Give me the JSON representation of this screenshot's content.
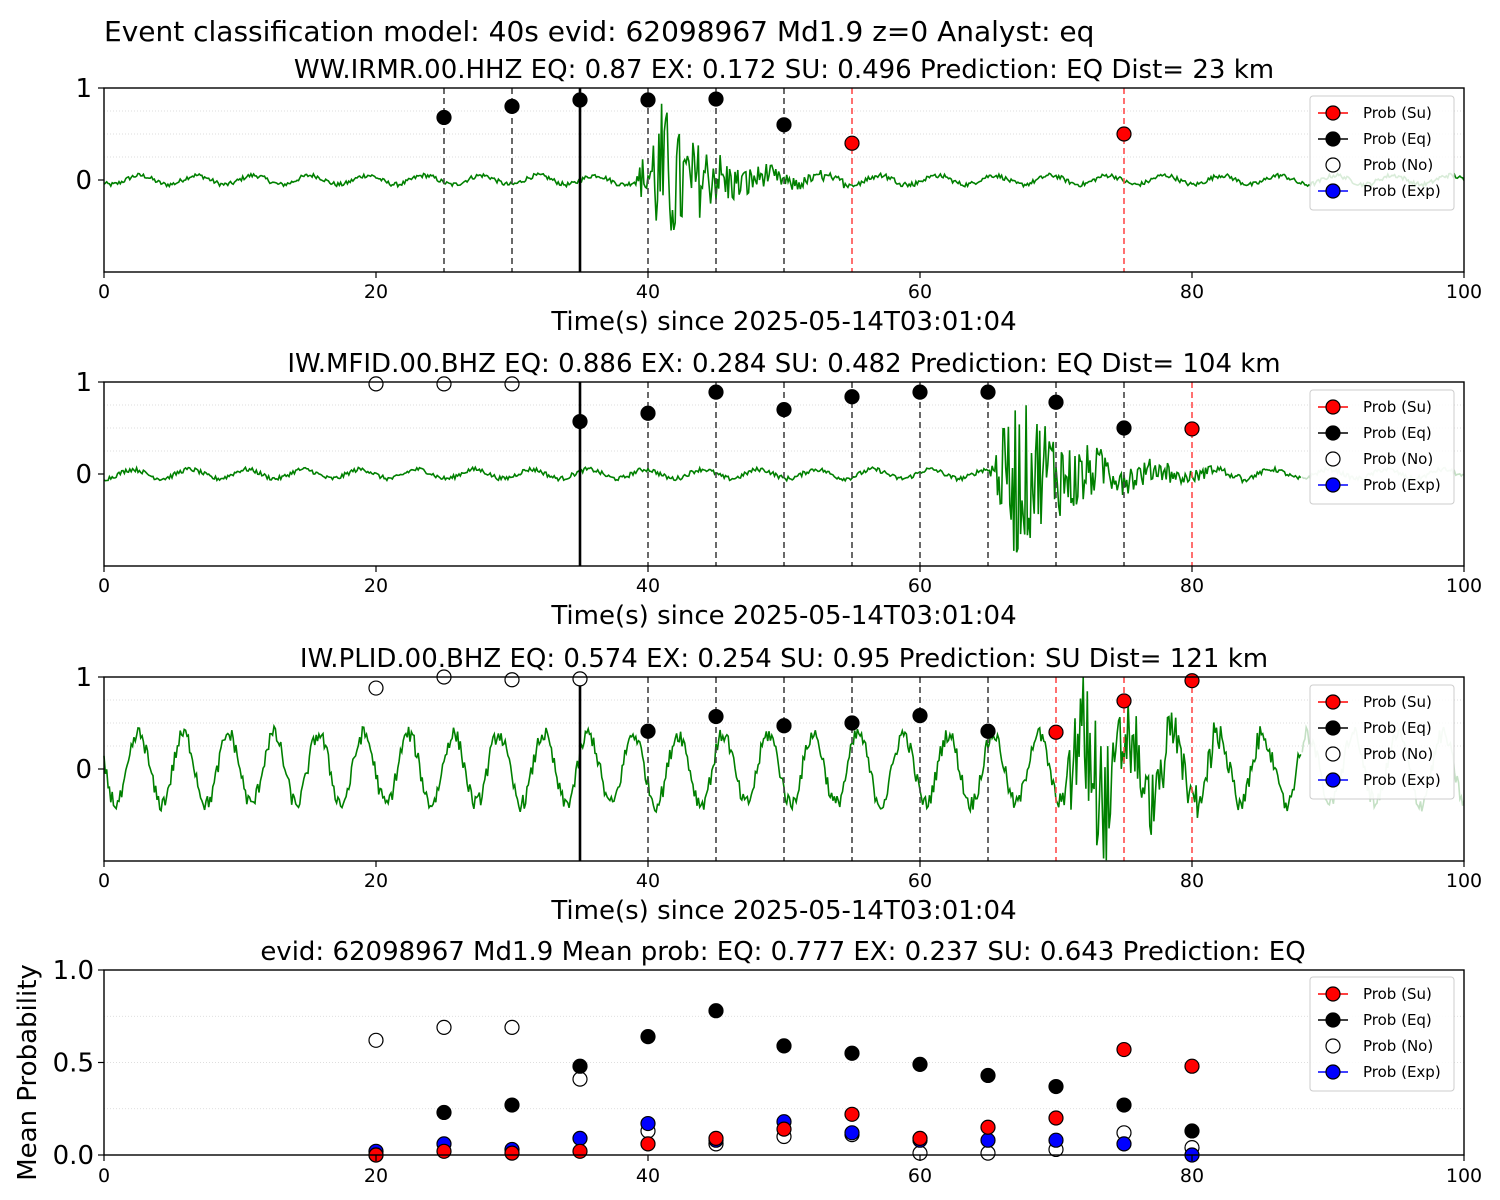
{
  "chart_data": {
    "type": "scatter",
    "suptitle": "Event classification model: 40s evid: 62098967 Md1.9 z=0 Analyst: eq",
    "colors": {
      "trace": "#008000",
      "su": "#ff0000",
      "eq": "#000000",
      "no": "#ffffff",
      "exp": "#0000ff",
      "marker_line": "#444444",
      "su_line": "#ff4c4c",
      "grid": "#d3d3d3"
    },
    "legend": {
      "placement": "top-right",
      "entries": [
        "Prob (Su)",
        "Prob (Eq)",
        "Prob (No)",
        "Prob (Exp)"
      ]
    },
    "panels": [
      {
        "title": "WW.IRMR.00.HHZ   EQ: 0.87  EX: 0.172  SU: 0.496   Prediction: EQ    Dist= 23 km",
        "xlabel": "Time(s) since 2025-05-14T03:01:04",
        "xlim": [
          0,
          100
        ],
        "ylim": [
          -1,
          1
        ],
        "xticks": [
          "0",
          "20",
          "40",
          "60",
          "80",
          "100"
        ],
        "yticks": [
          "1",
          "0"
        ],
        "signal_window": [
          39,
          50
        ],
        "faded_after": null,
        "bold_line": 35,
        "gray_lines": [
          25,
          30,
          40,
          45,
          50
        ],
        "red_lines": [
          55,
          75
        ],
        "eq": [
          [
            25,
            0.68
          ],
          [
            30,
            0.8
          ],
          [
            35,
            0.87
          ],
          [
            40,
            0.87
          ],
          [
            45,
            0.88
          ],
          [
            50,
            0.6
          ]
        ],
        "su": [
          [
            55,
            0.4
          ],
          [
            75,
            0.5
          ]
        ],
        "no": [],
        "exp": []
      },
      {
        "title": "IW.MFID.00.BHZ   EQ: 0.886  EX: 0.284  SU: 0.482   Prediction: EQ    Dist= 104 km",
        "xlabel": "Time(s) since 2025-05-14T03:01:04",
        "xlim": [
          0,
          100
        ],
        "ylim": [
          -1,
          1
        ],
        "xticks": [
          "0",
          "20",
          "40",
          "60",
          "80",
          "100"
        ],
        "yticks": [
          "1",
          "0"
        ],
        "signal_window": [
          65,
          72
        ],
        "faded_after": 88,
        "bold_line": 35,
        "gray_lines": [
          40,
          45,
          50,
          55,
          60,
          65,
          70,
          75
        ],
        "red_lines": [
          80
        ],
        "eq": [
          [
            35,
            0.57
          ],
          [
            40,
            0.66
          ],
          [
            45,
            0.89
          ],
          [
            50,
            0.7
          ],
          [
            55,
            0.84
          ],
          [
            60,
            0.89
          ],
          [
            65,
            0.89
          ],
          [
            70,
            0.78
          ],
          [
            75,
            0.5
          ]
        ],
        "su": [
          [
            80,
            0.49
          ]
        ],
        "no": [
          [
            20,
            0.98
          ],
          [
            25,
            0.98
          ],
          [
            30,
            0.98
          ]
        ],
        "exp": []
      },
      {
        "title": "IW.PLID.00.BHZ   EQ: 0.574  EX: 0.254  SU: 0.95   Prediction: SU    Dist= 121 km",
        "xlabel": "Time(s) since 2025-05-14T03:01:04",
        "xlim": [
          0,
          100
        ],
        "ylim": [
          -1,
          1
        ],
        "xticks": [
          "0",
          "20",
          "40",
          "60",
          "80",
          "100"
        ],
        "yticks": [
          "1",
          "0"
        ],
        "signal_window": [
          70,
          82
        ],
        "faded_after": 88,
        "bold_line": 35,
        "gray_lines": [
          40,
          45,
          50,
          55,
          60,
          65
        ],
        "red_lines": [
          70,
          75,
          80
        ],
        "eq": [
          [
            40,
            0.41
          ],
          [
            45,
            0.57
          ],
          [
            50,
            0.47
          ],
          [
            55,
            0.5
          ],
          [
            60,
            0.58
          ],
          [
            65,
            0.41
          ]
        ],
        "su": [
          [
            70,
            0.4
          ],
          [
            75,
            0.74
          ],
          [
            80,
            0.96
          ]
        ],
        "no": [
          [
            20,
            0.88
          ],
          [
            25,
            1.0
          ],
          [
            30,
            0.97
          ],
          [
            35,
            0.98
          ]
        ],
        "exp": []
      }
    ],
    "summary": {
      "title": "evid: 62098967  Md1.9   Mean prob:   EQ: 0.777  EX: 0.237  SU: 0.643   Prediction: EQ",
      "ylabel": "Mean Probability",
      "xlim": [
        0,
        100
      ],
      "ylim": [
        0,
        1
      ],
      "xticks": [
        "0",
        "20",
        "40",
        "60",
        "80",
        "100"
      ],
      "yticks": [
        "0.0",
        "0.5",
        "1.0"
      ],
      "no": [
        [
          20,
          0.62
        ],
        [
          25,
          0.69
        ],
        [
          30,
          0.69
        ],
        [
          35,
          0.41
        ],
        [
          40,
          0.13
        ],
        [
          45,
          0.06
        ],
        [
          50,
          0.1
        ],
        [
          55,
          0.11
        ],
        [
          60,
          0.01
        ],
        [
          65,
          0.01
        ],
        [
          70,
          0.03
        ],
        [
          75,
          0.12
        ],
        [
          80,
          0.04
        ]
      ],
      "exp": [
        [
          20,
          0.02
        ],
        [
          25,
          0.06
        ],
        [
          30,
          0.03
        ],
        [
          35,
          0.09
        ],
        [
          40,
          0.17
        ],
        [
          45,
          0.08
        ],
        [
          50,
          0.18
        ],
        [
          55,
          0.12
        ],
        [
          60,
          0.08
        ],
        [
          65,
          0.08
        ],
        [
          70,
          0.08
        ],
        [
          75,
          0.06
        ],
        [
          80,
          0.0
        ]
      ],
      "eq": [
        [
          20,
          0.0
        ],
        [
          25,
          0.23
        ],
        [
          30,
          0.27
        ],
        [
          35,
          0.48
        ],
        [
          40,
          0.64
        ],
        [
          45,
          0.78
        ],
        [
          50,
          0.59
        ],
        [
          55,
          0.55
        ],
        [
          60,
          0.49
        ],
        [
          65,
          0.43
        ],
        [
          70,
          0.37
        ],
        [
          75,
          0.27
        ],
        [
          80,
          0.13
        ]
      ],
      "su": [
        [
          20,
          0.0
        ],
        [
          25,
          0.02
        ],
        [
          30,
          0.01
        ],
        [
          35,
          0.02
        ],
        [
          40,
          0.06
        ],
        [
          45,
          0.09
        ],
        [
          50,
          0.14
        ],
        [
          55,
          0.22
        ],
        [
          60,
          0.09
        ],
        [
          65,
          0.15
        ],
        [
          70,
          0.2
        ],
        [
          75,
          0.57
        ],
        [
          80,
          0.48
        ]
      ]
    }
  }
}
